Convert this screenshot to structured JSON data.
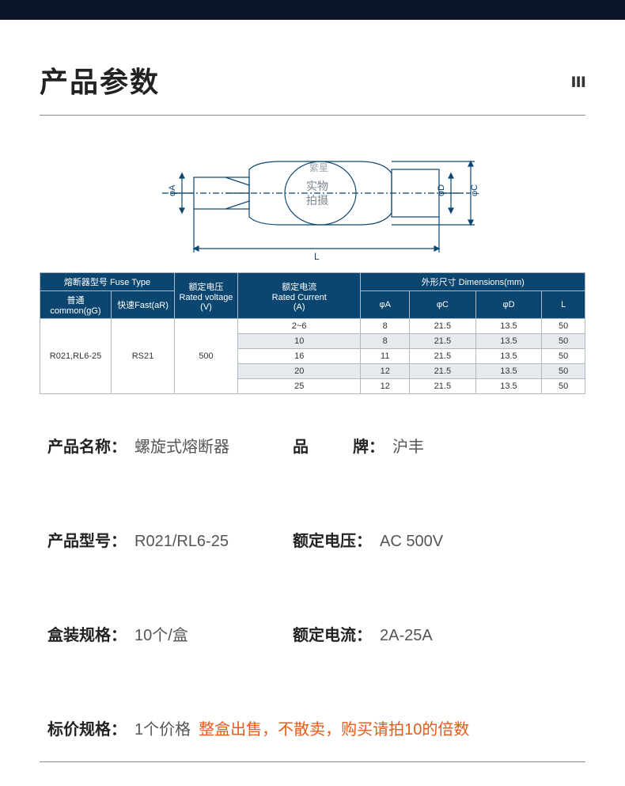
{
  "header": {
    "title": "产品参数",
    "decor": "ııı"
  },
  "diagram": {
    "labels": {
      "phiA": "φA",
      "phiC": "φC",
      "phiD": "φD",
      "L": "L"
    },
    "watermark": {
      "line1": "实物",
      "line2": "拍摄",
      "circle": "繁星"
    },
    "stroke": "#0b4670"
  },
  "table": {
    "headers": {
      "fuseType": "熔断器型号 Fuse Type",
      "common": "普通common(gG)",
      "fast": "快速Fast(aR)",
      "voltage": "额定电压\nRated voltage\n(V)",
      "current": "额定电流\nRated Current\n(A)",
      "dim": "外形尺寸 Dimensions(mm)",
      "phiA": "φA",
      "phiC": "φC",
      "phiD": "φD",
      "L": "L"
    },
    "commonVal": "R021,RL6-25",
    "fastVal": "RS21",
    "voltageVal": "500",
    "rows": [
      {
        "cur": "2~6",
        "a": "8",
        "c": "21.5",
        "d": "13.5",
        "l": "50",
        "alt": false
      },
      {
        "cur": "10",
        "a": "8",
        "c": "21.5",
        "d": "13.5",
        "l": "50",
        "alt": true
      },
      {
        "cur": "16",
        "a": "11",
        "c": "21.5",
        "d": "13.5",
        "l": "50",
        "alt": false
      },
      {
        "cur": "20",
        "a": "12",
        "c": "21.5",
        "d": "13.5",
        "l": "50",
        "alt": true
      },
      {
        "cur": "25",
        "a": "12",
        "c": "21.5",
        "d": "13.5",
        "l": "50",
        "alt": false
      }
    ]
  },
  "specs": {
    "name": {
      "label": "产品名称：",
      "value": "螺旋式熔断器"
    },
    "brand": {
      "label": "品牌：",
      "value": "沪丰"
    },
    "model": {
      "label": "产品型号：",
      "value": "R021/RL6-25"
    },
    "voltage": {
      "label": "额定电压：",
      "value": "AC 500V"
    },
    "box": {
      "label": "盒装规格：",
      "value": "10个/盒"
    },
    "current": {
      "label": "额定电流：",
      "value": "2A-25A"
    },
    "price": {
      "label": "标价规格：",
      "value1": "1个价格",
      "value2": "整盒出售，不散卖，购买请拍10的倍数"
    }
  }
}
